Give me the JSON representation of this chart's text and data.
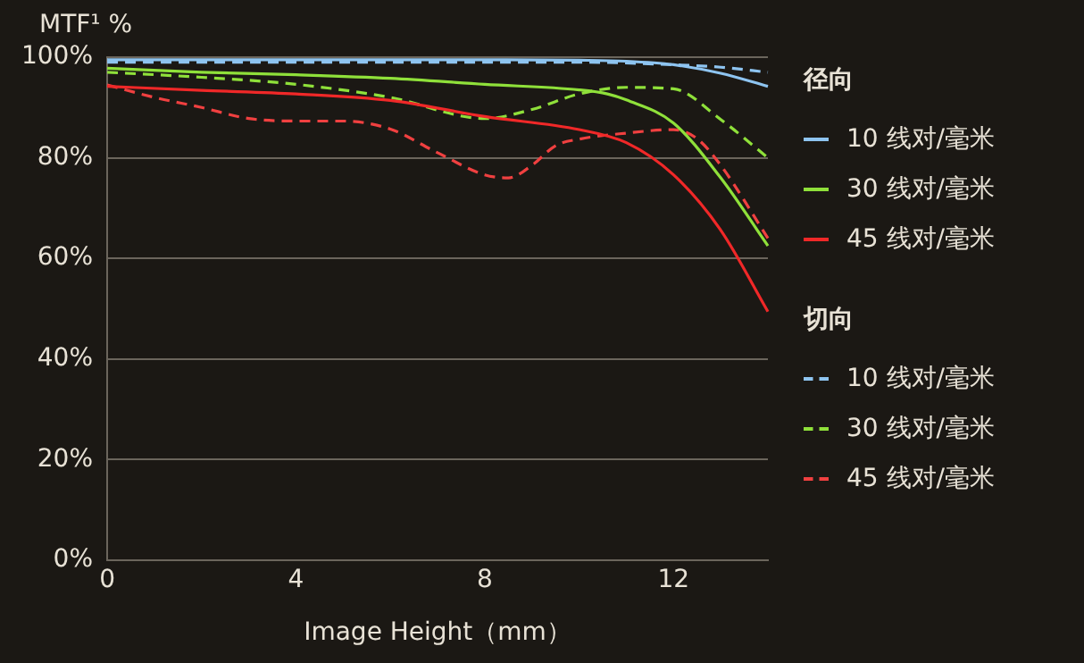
{
  "chart_data": {
    "type": "line",
    "ylabel": "MTF¹ %",
    "xlabel": "Image Height（mm）",
    "annotations": [
      "径向",
      "切向"
    ],
    "xlim": [
      0,
      14
    ],
    "xticks": [
      0,
      4,
      8,
      12
    ],
    "ylim": [
      0,
      100
    ],
    "yticks": [
      {
        "value": 0,
        "label": "0%"
      },
      {
        "value": 20,
        "label": "20%"
      },
      {
        "value": 40,
        "label": "40%"
      },
      {
        "value": 60,
        "label": "60%"
      },
      {
        "value": 80,
        "label": "80%"
      },
      {
        "value": 100,
        "label": "100%"
      }
    ],
    "grid": "y",
    "legend": "right",
    "marker": "none",
    "series": [
      {
        "name": "10 线对/毫米",
        "color": "#8ec4f0",
        "line_style": "solid",
        "x": [
          0,
          2,
          4,
          6,
          8,
          10,
          11,
          12,
          13,
          14
        ],
        "values": [
          99.5,
          99.5,
          99.5,
          99.5,
          99.5,
          99.4,
          99.2,
          98.5,
          96.8,
          94.2
        ]
      },
      {
        "name": "30 线对/毫米",
        "color": "#8fe03a",
        "line_style": "solid",
        "x": [
          0,
          2,
          4,
          6,
          8,
          10,
          10.6,
          11,
          12,
          13,
          14
        ],
        "values": [
          97.8,
          97,
          96.5,
          95.8,
          94.6,
          93.5,
          92.7,
          91.5,
          86.9,
          76,
          62.5
        ]
      },
      {
        "name": "45 线对/毫米",
        "color": "#f02828",
        "line_style": "solid",
        "x": [
          0,
          2,
          4,
          6,
          8,
          10,
          11,
          12,
          13,
          14
        ],
        "values": [
          94.2,
          93.4,
          92.7,
          91.4,
          88.2,
          85.6,
          83,
          76.6,
          65.6,
          49.4
        ]
      },
      {
        "name": "10 线对/毫米",
        "color": "#8ec4f0",
        "line_style": "dashed",
        "x": [
          0,
          2,
          4,
          6,
          8,
          10,
          12,
          13,
          14
        ],
        "values": [
          99,
          99,
          99,
          99,
          99,
          99,
          98.5,
          98,
          97
        ]
      },
      {
        "name": "30 线对/毫米",
        "color": "#8fe03a",
        "line_style": "dashed",
        "x": [
          0,
          2,
          4,
          6,
          8,
          9,
          10,
          11,
          12,
          13,
          14
        ],
        "values": [
          97,
          96,
          94.6,
          92,
          87.8,
          89.6,
          92.7,
          94,
          93.7,
          87.6,
          80
        ]
      },
      {
        "name": "45 线对/毫米",
        "color": "#f04040",
        "line_style": "dashed",
        "x": [
          0,
          1,
          2,
          3,
          4,
          5,
          6,
          7,
          8,
          8.5,
          9,
          9.5,
          10,
          11,
          12,
          12.5,
          13,
          14
        ],
        "values": [
          94.5,
          92,
          90,
          87.8,
          87.3,
          87.3,
          85.7,
          81,
          76.6,
          76,
          78.5,
          82.4,
          83.7,
          84.9,
          85.6,
          83.8,
          78.5,
          64
        ]
      }
    ]
  }
}
